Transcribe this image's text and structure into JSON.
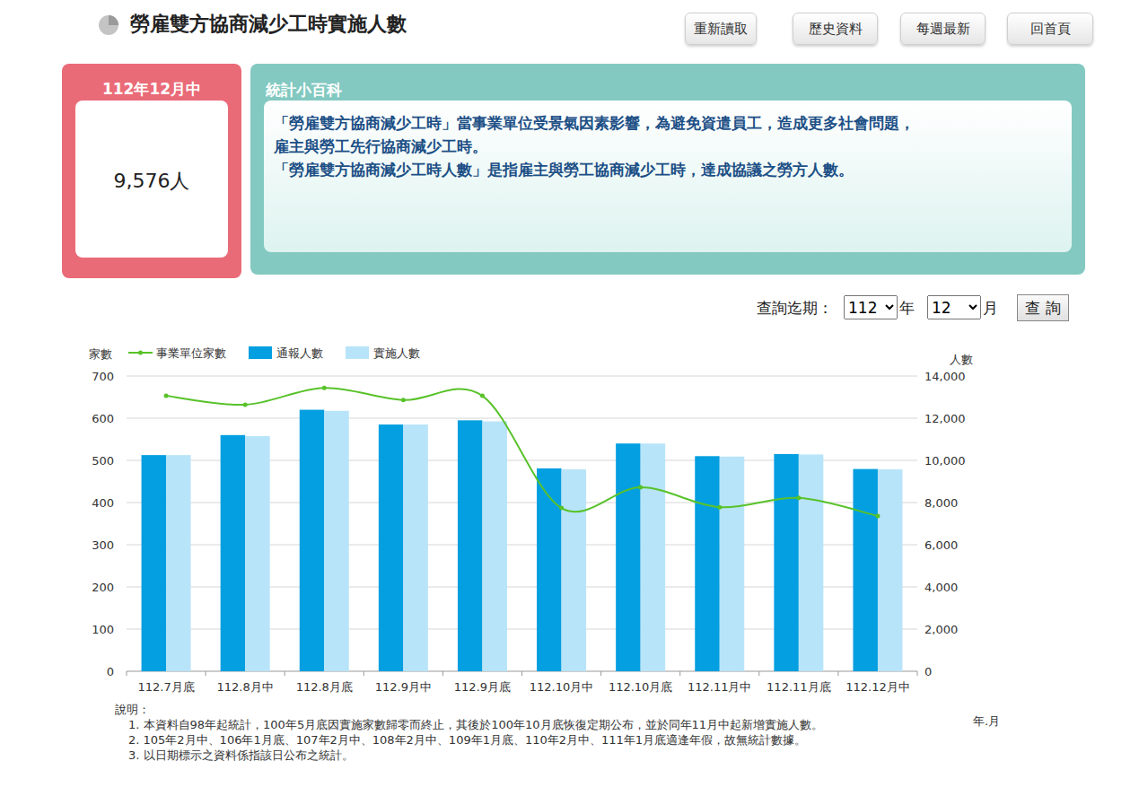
{
  "page": {
    "title": "勞雇雙方協商減少工時實施人數",
    "buttons": [
      "重新讀取",
      "歷史資料",
      "每週最新",
      "回首頁"
    ],
    "card": {
      "label": "112年12月中",
      "value": "9,576人"
    },
    "info": {
      "title": "統計小百科",
      "paragraphs": [
        "「勞雇雙方協商減少工時」當事業單位受景氣因素影響，為避免資遣員工，造成更多社會問題，雇主與勞工先行協商減少工時。",
        "「勞雇雙方協商減少工時人數」是指雇主與勞工協商減少工時，達成協議之勞方人數。"
      ]
    },
    "query": {
      "label": "查詢迄期：",
      "year": "112",
      "year_unit": "年",
      "month": "12",
      "month_unit": "月",
      "button": "查 詢"
    },
    "notes": {
      "title": "說明：",
      "items": [
        "1. 本資料自98年起統計，100年5月底因實施家數歸零而終止，其後於100年10月底恢復定期公布，並於同年11月中起新增實施人數。",
        "2. 105年2月中、106年1月底、107年2月中、108年2月中、109年1月底、110年2月中、111年1月底適逢年假，故無統計數據。",
        "3. 以日期標示之資料係指該日公布之統計。"
      ]
    }
  },
  "chart_data": {
    "type": "bar",
    "x_label": "年.月",
    "y_label": "家數",
    "y2_label": "人數",
    "categories": [
      "112.7月底",
      "112.8月中",
      "112.8月底",
      "112.9月中",
      "112.9月底",
      "112.10月中",
      "112.10月底",
      "112.11月中",
      "112.11月底",
      "112.12月中"
    ],
    "series": [
      {
        "name": "通報人數",
        "type": "bar",
        "axis": "y2",
        "color": "#049fe0",
        "values": [
          10250,
          11200,
          12400,
          11700,
          11900,
          9620,
          10800,
          10200,
          10300,
          9590
        ]
      },
      {
        "name": "實施人數",
        "type": "bar",
        "axis": "y2",
        "color": "#b8e4f9",
        "values": [
          10250,
          11150,
          12350,
          11700,
          11850,
          9580,
          10800,
          10180,
          10280,
          9576
        ]
      },
      {
        "name": "事業單位家數",
        "type": "line",
        "axis": "y",
        "color": "#58c22a",
        "marker": "circle",
        "line_style": "solid",
        "values": [
          653,
          632,
          672,
          643,
          653,
          387,
          436,
          389,
          411,
          368
        ]
      }
    ],
    "ylim": [
      0,
      700
    ],
    "yticks": [
      0,
      100,
      200,
      300,
      400,
      500,
      600,
      700
    ],
    "y2lim": [
      0,
      14000
    ],
    "y2ticks": [
      0,
      {
        "value": 2000,
        "label": "2,000"
      },
      {
        "value": 4000,
        "label": "4,000"
      },
      {
        "value": 6000,
        "label": "6,000"
      },
      {
        "value": 8000,
        "label": "8,000"
      },
      {
        "value": 10000,
        "label": "10,000"
      },
      {
        "value": 12000,
        "label": "12,000"
      },
      {
        "value": 14000,
        "label": "14,000"
      }
    ],
    "grid": true,
    "legend": "top-left"
  }
}
